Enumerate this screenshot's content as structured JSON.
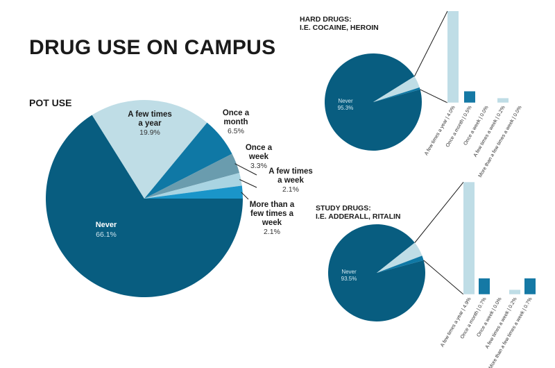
{
  "title": "DRUG USE ON CAMPUS",
  "colors": {
    "never": "#085d80",
    "few_year": "#bfdde6",
    "once_month": "#0f78a5",
    "once_week": "#6a9cae",
    "few_week": "#a9d4e2",
    "more_week": "#1a95c9",
    "bar_light": "#bfdde6",
    "bar_dark": "#1579a5"
  },
  "chart_data": [
    {
      "type": "pie",
      "title": "POT USE",
      "slices": [
        {
          "label": "Never",
          "value": 66.1,
          "display": "66.1%",
          "color": "#085d80"
        },
        {
          "label": "A few times a year",
          "value": 19.9,
          "display": "19.9%",
          "color": "#bfdde6"
        },
        {
          "label": "Once a month",
          "value": 6.5,
          "display": "6.5%",
          "color": "#0f78a5"
        },
        {
          "label": "Once a week",
          "value": 3.3,
          "display": "3.3%",
          "color": "#6a9cae"
        },
        {
          "label": "A few times a week",
          "value": 2.1,
          "display": "2.1%",
          "color": "#a9d4e2"
        },
        {
          "label": "More than a few times a week",
          "value": 2.1,
          "display": "2.1%",
          "color": "#1a95c9"
        }
      ]
    },
    {
      "type": "pie",
      "title": "HARD DRUGS: I.E. COCAINE, HEROIN",
      "title_lines": [
        "HARD DRUGS:",
        "I.E. COCAINE, HEROIN"
      ],
      "never_label": "Never",
      "never_value": 95.3,
      "never_display": "95.3%",
      "breakdown": [
        {
          "label": "A few times a year | 4.0%",
          "value": 4.0
        },
        {
          "label": "Once a month | 0.5%",
          "value": 0.5
        },
        {
          "label": "Once a week | 0.0%",
          "value": 0.0
        },
        {
          "label": "A few times a week | 0.2%",
          "value": 0.2
        },
        {
          "label": "More than a few times a week | 0.0%",
          "value": 0.0
        }
      ]
    },
    {
      "type": "pie",
      "title": "STUDY DRUGS: I.E. ADDERALL, RITALIN",
      "title_lines": [
        "STUDY DRUGS:",
        "I.E. ADDERALL, RITALIN"
      ],
      "never_label": "Never",
      "never_value": 93.5,
      "never_display": "93.5%",
      "breakdown": [
        {
          "label": "A few times a year | 4.9%",
          "value": 4.9
        },
        {
          "label": "Once a month | 0.7%",
          "value": 0.7
        },
        {
          "label": "Once a week | 0.0%",
          "value": 0.0
        },
        {
          "label": "A few times a week | 0.2%",
          "value": 0.2
        },
        {
          "label": "More than a few times a week | 0.7%",
          "value": 0.7
        }
      ]
    }
  ]
}
